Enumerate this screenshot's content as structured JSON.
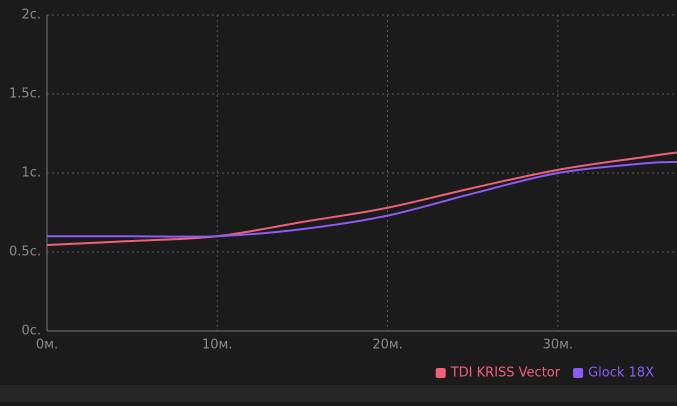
{
  "chart_data": {
    "type": "line",
    "x": [
      0,
      5,
      10,
      15,
      20,
      25,
      30,
      35,
      37
    ],
    "series": [
      {
        "name": "TDI KRISS Vector",
        "color": "#f0607a",
        "values": [
          0.544,
          0.57,
          0.6,
          0.69,
          0.78,
          0.905,
          1.02,
          1.1,
          1.13
        ]
      },
      {
        "name": "Glock 18X",
        "color": "#8b5cf6",
        "values": [
          0.6,
          0.6,
          0.6,
          0.645,
          0.73,
          0.87,
          1.0,
          1.06,
          1.07
        ]
      }
    ],
    "xlim": [
      0,
      37
    ],
    "xticks": [
      {
        "value": 0,
        "label": "0м."
      },
      {
        "value": 10,
        "label": "10м."
      },
      {
        "value": 20,
        "label": "20м."
      },
      {
        "value": 30,
        "label": "30м."
      }
    ],
    "ylim": [
      0,
      2
    ],
    "yticks": [
      {
        "value": 0,
        "label": "0с."
      },
      {
        "value": 0.5,
        "label": "0.5с."
      },
      {
        "value": 1,
        "label": "1с."
      },
      {
        "value": 1.5,
        "label": "1.5с."
      },
      {
        "value": 2,
        "label": "2с."
      }
    ],
    "grid": true,
    "legend": "bottom-right"
  }
}
